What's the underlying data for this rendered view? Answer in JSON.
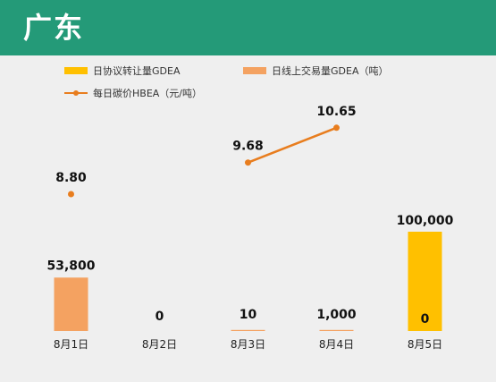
{
  "header": {
    "title": "广东"
  },
  "chart_data": {
    "type": "bar",
    "categories": [
      "8月1日",
      "8月2日",
      "8月3日",
      "8月4日",
      "8月5日"
    ],
    "series": [
      {
        "name": "日协议转让量GDEA",
        "kind": "bar",
        "values": [
          0,
          0,
          0,
          0,
          100000
        ],
        "labels": [
          "",
          "",
          "",
          "",
          "100,000"
        ],
        "color": "#ffc000"
      },
      {
        "name": "日线上交易量GDEA（吨）",
        "kind": "bar",
        "values": [
          53800,
          0,
          10,
          1000,
          0
        ],
        "labels": [
          "53,800",
          "0",
          "10",
          "1,000",
          "0"
        ],
        "color": "#f4a261"
      },
      {
        "name": "每日碳价HBEA（元/吨）",
        "kind": "line",
        "values": [
          8.8,
          null,
          9.68,
          10.65,
          null
        ],
        "labels": [
          "8.80",
          "",
          "9.68",
          "10.65",
          ""
        ],
        "color": "#e87d1e"
      }
    ],
    "grid": false,
    "legend_position": "top"
  }
}
